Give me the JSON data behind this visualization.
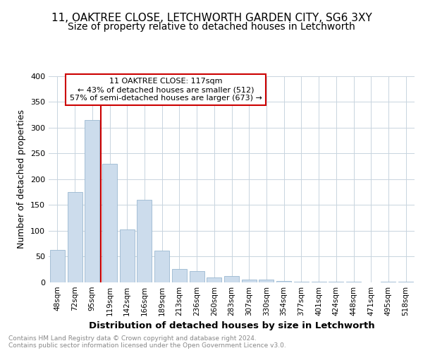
{
  "title1": "11, OAKTREE CLOSE, LETCHWORTH GARDEN CITY, SG6 3XY",
  "title2": "Size of property relative to detached houses in Letchworth",
  "xlabel": "Distribution of detached houses by size in Letchworth",
  "ylabel": "Number of detached properties",
  "categories": [
    "48sqm",
    "72sqm",
    "95sqm",
    "119sqm",
    "142sqm",
    "166sqm",
    "189sqm",
    "213sqm",
    "236sqm",
    "260sqm",
    "283sqm",
    "307sqm",
    "330sqm",
    "354sqm",
    "377sqm",
    "401sqm",
    "424sqm",
    "448sqm",
    "471sqm",
    "495sqm",
    "518sqm"
  ],
  "values": [
    63,
    175,
    314,
    230,
    103,
    160,
    62,
    26,
    22,
    9,
    12,
    6,
    5,
    3,
    2,
    1,
    1,
    1,
    0,
    1,
    2
  ],
  "bar_color": "#ccdcec",
  "bar_edge_color": "#9ab8d0",
  "vline_color": "#cc0000",
  "vline_position": 2.5,
  "annotation_box_text": "11 OAKTREE CLOSE: 117sqm\n← 43% of detached houses are smaller (512)\n57% of semi-detached houses are larger (673) →",
  "annotation_box_color": "#cc0000",
  "grid_color": "#c8d4de",
  "background_color": "#ffffff",
  "footer_text": "Contains HM Land Registry data © Crown copyright and database right 2024.\nContains public sector information licensed under the Open Government Licence v3.0.",
  "ylim": [
    0,
    400
  ],
  "yticks": [
    0,
    50,
    100,
    150,
    200,
    250,
    300,
    350,
    400
  ],
  "title1_fontsize": 11,
  "title2_fontsize": 10,
  "xlabel_fontsize": 9.5,
  "ylabel_fontsize": 9,
  "footer_fontsize": 6.5,
  "annot_fontsize": 8
}
